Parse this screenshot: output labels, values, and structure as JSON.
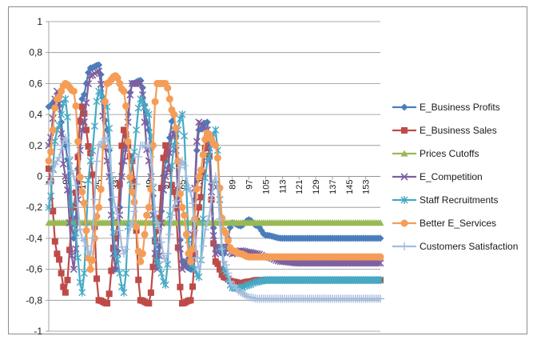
{
  "chart_data": {
    "type": "line",
    "title": "",
    "xlabel": "",
    "ylabel": "",
    "ylim": [
      -1,
      1
    ],
    "yticks": [
      1,
      0.8,
      0.6,
      0.4,
      0.2,
      0,
      -0.2,
      -0.4,
      -0.6,
      -0.8,
      -1
    ],
    "ytick_labels": [
      "1",
      "0,8",
      "0,6",
      "0,4",
      "0,2",
      "0",
      "-0,2",
      "-0,4",
      "-0,6",
      "-0,8",
      "-1"
    ],
    "xlim": [
      1,
      160
    ],
    "xticks": [
      1,
      9,
      17,
      25,
      33,
      41,
      49,
      57,
      65,
      73,
      81,
      89,
      97,
      105,
      113,
      121,
      129,
      137,
      145,
      153
    ],
    "grid": "horizontal",
    "legend_position": "right",
    "series": [
      {
        "name": "E_Business Profits",
        "color": "#4a7ebb",
        "marker": "diamond",
        "x": [
          1,
          5,
          9,
          13,
          17,
          21,
          25,
          29,
          33,
          37,
          41,
          45,
          49,
          53,
          57,
          61,
          65,
          69,
          73,
          77,
          81,
          85,
          89,
          93,
          97,
          101,
          105,
          113,
          121,
          129,
          137,
          145,
          153,
          160
        ],
        "values": [
          0.45,
          0.5,
          0.2,
          -0.4,
          0.5,
          0.7,
          0.72,
          0.3,
          -0.6,
          0.2,
          0.6,
          0.62,
          0.3,
          -0.55,
          0.1,
          0.4,
          -0.55,
          -0.6,
          0.3,
          0.35,
          -0.45,
          -0.5,
          -0.3,
          -0.32,
          -0.28,
          -0.32,
          -0.38,
          -0.4,
          -0.4,
          -0.4,
          -0.4,
          -0.4,
          -0.4,
          -0.4
        ]
      },
      {
        "name": "E_Business Sales",
        "color": "#be4b48",
        "marker": "square",
        "x": [
          1,
          5,
          9,
          13,
          17,
          21,
          25,
          29,
          33,
          37,
          41,
          45,
          49,
          53,
          57,
          61,
          65,
          69,
          73,
          77,
          81,
          85,
          89,
          93,
          97,
          101,
          105,
          113,
          121,
          129,
          137,
          145,
          153,
          160
        ],
        "values": [
          0.05,
          -0.5,
          -0.75,
          -0.2,
          0.45,
          0.15,
          -0.8,
          -0.82,
          -0.4,
          0.3,
          0.1,
          -0.8,
          -0.82,
          -0.35,
          0.2,
          -0.1,
          -0.82,
          -0.8,
          -0.2,
          0.25,
          -0.55,
          -0.65,
          -0.68,
          -0.69,
          -0.68,
          -0.67,
          -0.67,
          -0.67,
          -0.67,
          -0.67,
          -0.67,
          -0.67,
          -0.67,
          -0.67
        ]
      },
      {
        "name": "Prices Cutoffs",
        "color": "#98b954",
        "marker": "triangle",
        "x": [
          1,
          20,
          40,
          60,
          80,
          100,
          120,
          140,
          160
        ],
        "values": [
          -0.3,
          -0.3,
          -0.3,
          -0.3,
          -0.3,
          -0.3,
          -0.3,
          -0.3,
          -0.3
        ]
      },
      {
        "name": "E_Competition",
        "color": "#7d5fa0",
        "marker": "x",
        "x": [
          1,
          5,
          9,
          13,
          17,
          21,
          25,
          29,
          33,
          37,
          41,
          45,
          49,
          53,
          57,
          61,
          65,
          69,
          73,
          77,
          81,
          85,
          89,
          93,
          97,
          101,
          105,
          113,
          121,
          129,
          137,
          145,
          153,
          160
        ],
        "values": [
          0.2,
          0.55,
          0.0,
          -0.6,
          0.3,
          0.65,
          0.68,
          0.1,
          -0.6,
          0.1,
          0.6,
          0.6,
          0.1,
          -0.6,
          0.0,
          0.3,
          -0.6,
          -0.5,
          0.35,
          0.3,
          -0.5,
          -0.45,
          -0.5,
          -0.48,
          -0.49,
          -0.5,
          -0.52,
          -0.55,
          -0.56,
          -0.56,
          -0.56,
          -0.56,
          -0.56,
          -0.56
        ]
      },
      {
        "name": "Staff Recruitments",
        "color": "#46aac5",
        "marker": "star",
        "x": [
          1,
          5,
          9,
          13,
          17,
          21,
          25,
          29,
          33,
          37,
          41,
          45,
          49,
          53,
          57,
          61,
          65,
          69,
          73,
          77,
          81,
          85,
          89,
          93,
          97,
          101,
          105,
          113,
          121,
          129,
          137,
          145,
          153,
          160
        ],
        "values": [
          -0.2,
          0.3,
          0.5,
          -0.3,
          -0.75,
          0.1,
          0.55,
          0.45,
          -0.5,
          -0.75,
          0.1,
          0.5,
          0.4,
          -0.55,
          -0.7,
          0.2,
          0.4,
          -0.55,
          -0.65,
          0.1,
          0.3,
          -0.6,
          -0.72,
          -0.72,
          -0.7,
          -0.68,
          -0.67,
          -0.67,
          -0.67,
          -0.67,
          -0.67,
          -0.67,
          -0.67,
          -0.67
        ]
      },
      {
        "name": "Better E_Services",
        "color": "#f59d56",
        "marker": "circle",
        "x": [
          1,
          5,
          9,
          13,
          17,
          21,
          25,
          29,
          33,
          37,
          41,
          45,
          49,
          53,
          57,
          61,
          65,
          69,
          73,
          77,
          81,
          85,
          89,
          93,
          97,
          101,
          105,
          113,
          121,
          129,
          137,
          145,
          153,
          160
        ],
        "values": [
          0.1,
          0.5,
          0.6,
          0.55,
          -0.1,
          -0.6,
          -0.2,
          0.6,
          0.65,
          0.55,
          -0.1,
          -0.55,
          -0.2,
          0.6,
          0.6,
          0.4,
          -0.2,
          -0.55,
          0.0,
          0.28,
          0.2,
          -0.35,
          -0.48,
          -0.5,
          -0.52,
          -0.52,
          -0.52,
          -0.52,
          -0.52,
          -0.52,
          -0.52,
          -0.52,
          -0.52,
          -0.52
        ]
      },
      {
        "name": "Customers Satisfaction",
        "color": "#a4bcdd",
        "marker": "plus",
        "x": [
          1,
          5,
          9,
          13,
          17,
          21,
          25,
          29,
          33,
          37,
          41,
          45,
          49,
          53,
          57,
          61,
          65,
          69,
          73,
          77,
          81,
          85,
          89,
          93,
          97,
          101,
          105,
          113,
          121,
          129,
          137,
          145,
          153,
          160
        ],
        "values": [
          -0.05,
          0.1,
          0.25,
          0.0,
          -0.4,
          -0.5,
          0.2,
          0.25,
          -0.2,
          -0.5,
          -0.3,
          0.2,
          0.2,
          -0.3,
          -0.55,
          -0.2,
          0.1,
          -0.1,
          -0.6,
          -0.3,
          0.0,
          -0.55,
          -0.7,
          -0.75,
          -0.78,
          -0.79,
          -0.79,
          -0.79,
          -0.79,
          -0.79,
          -0.79,
          -0.79,
          -0.79,
          -0.79
        ]
      }
    ]
  }
}
